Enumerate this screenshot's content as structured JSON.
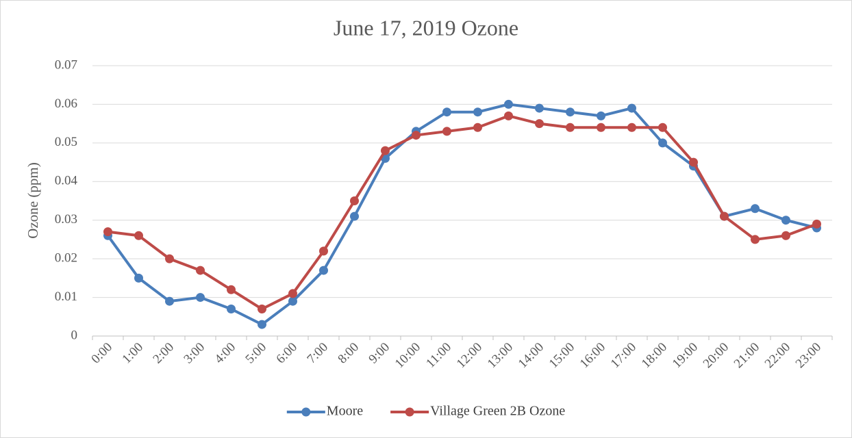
{
  "chart_data": {
    "type": "line",
    "title": "June 17, 2019 Ozone",
    "y_label": "Ozone (ppm)",
    "categories": [
      "0:00",
      "1:00",
      "2:00",
      "3:00",
      "4:00",
      "5:00",
      "6:00",
      "7:00",
      "8:00",
      "9:00",
      "10:00",
      "11:00",
      "12:00",
      "13:00",
      "14:00",
      "15:00",
      "16:00",
      "17:00",
      "18:00",
      "19:00",
      "20:00",
      "21:00",
      "22:00",
      "23:00"
    ],
    "series": [
      {
        "name": "Moore",
        "color": "#4a7ebb",
        "values": [
          0.026,
          0.015,
          0.009,
          0.01,
          0.007,
          0.003,
          0.009,
          0.017,
          0.031,
          0.046,
          0.053,
          0.058,
          0.058,
          0.06,
          0.059,
          0.058,
          0.057,
          0.059,
          0.05,
          0.044,
          0.031,
          0.033,
          0.03,
          0.028
        ]
      },
      {
        "name": "Village Green 2B Ozone",
        "color": "#be4b48",
        "values": [
          0.027,
          0.026,
          0.02,
          0.017,
          0.012,
          0.007,
          0.011,
          0.022,
          0.035,
          0.048,
          0.052,
          0.053,
          0.054,
          0.057,
          0.055,
          0.054,
          0.054,
          0.054,
          0.054,
          0.045,
          0.031,
          0.025,
          0.026,
          0.029
        ]
      }
    ],
    "ylim": [
      0,
      0.07
    ],
    "yticks": [
      0,
      0.01,
      0.02,
      0.03,
      0.04,
      0.05,
      0.06,
      0.07
    ],
    "grid": true,
    "legend": "bottom"
  }
}
